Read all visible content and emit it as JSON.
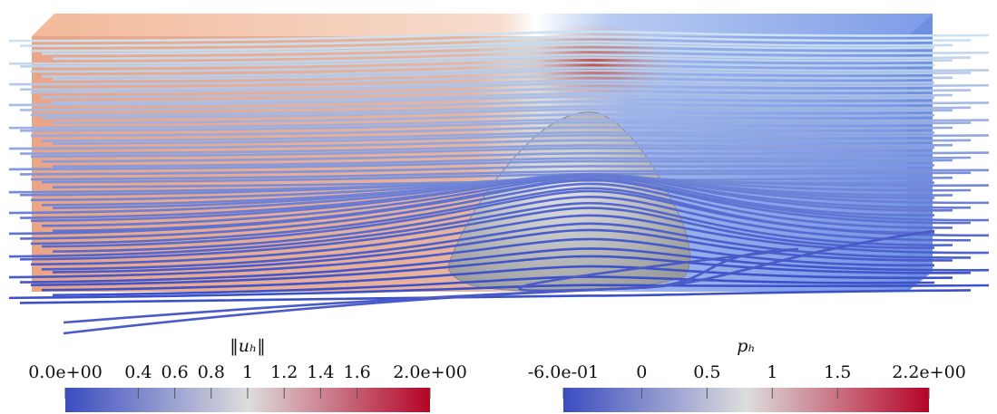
{
  "colorbars": [
    {
      "label": "‖uₕ‖",
      "range": [
        0,
        2
      ],
      "colors": [
        "#3b4cc0",
        "#dddddd",
        "#b40426"
      ],
      "ticks": [
        {
          "value": 0,
          "label": "0.0e+00"
        },
        0.4,
        0.6,
        0.8,
        1,
        1.2,
        1.4,
        1.6,
        {
          "value": 2,
          "label": "2.0e+00"
        }
      ]
    },
    {
      "label": "pₕ",
      "range": [
        -0.6,
        2.2
      ],
      "colors": [
        "#3b4cc0",
        "#dddddd",
        "#b40426"
      ],
      "ticks": [
        {
          "value": -0.6,
          "label": "-6.0e-01"
        },
        0,
        0.5,
        1,
        1.5,
        {
          "value": 2.2,
          "label": "2.2e+00"
        }
      ]
    }
  ]
}
